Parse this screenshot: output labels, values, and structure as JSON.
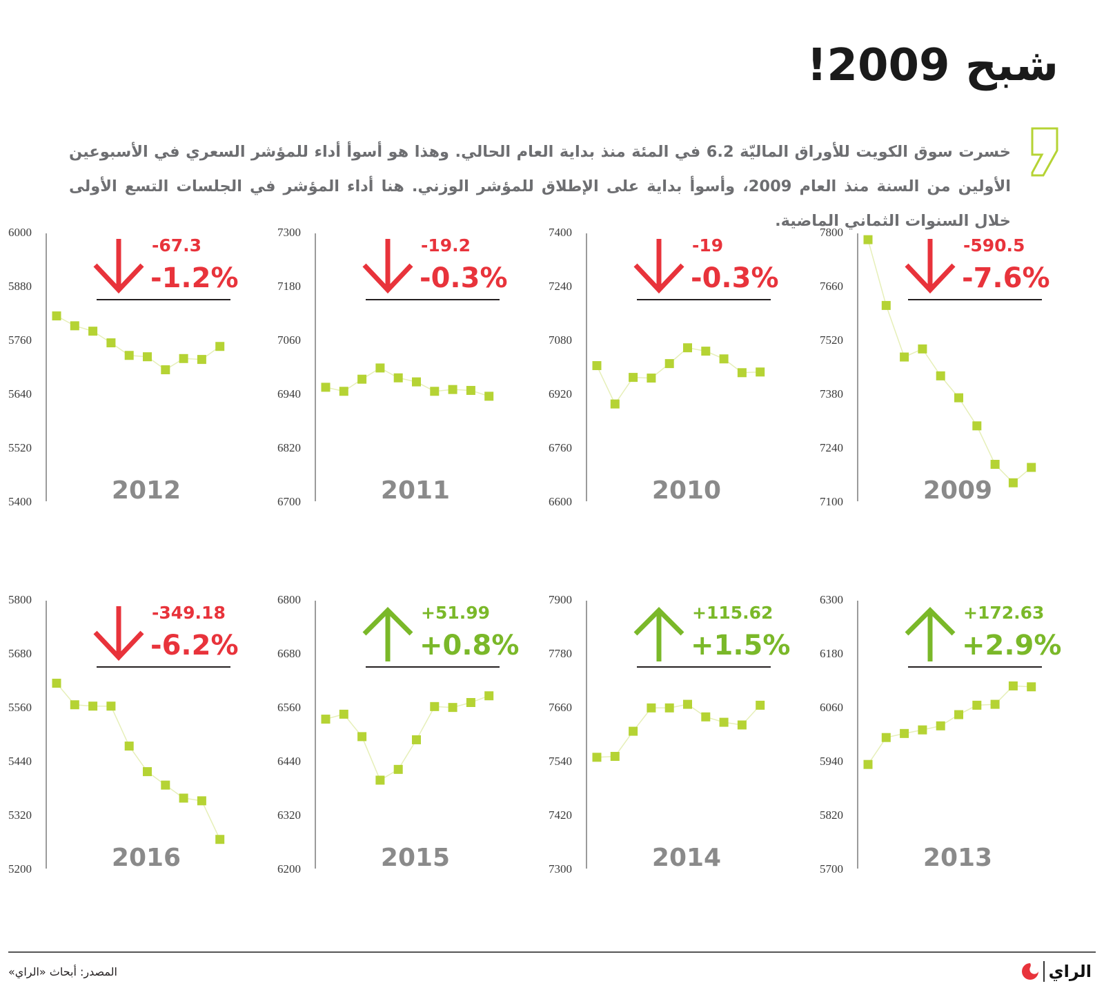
{
  "header": {
    "title": "شبح 2009!",
    "intro": "خسرت سوق الكويت للأوراق الماليّة 6.2 في المئة منذ بداية العام الحالي. وهذا هو أسوأ أداء للمؤشر السعري في الأسبوعين الأولين من السنة منذ العام 2009، وأسوأ بداية على الإطلاق للمؤشر الوزني. هنا أداء المؤشر في الجلسات التسع الأولى خلال السنوات الثماني الماضية."
  },
  "colors": {
    "up": "#7ab829",
    "down": "#e8333b",
    "marker": "#b5d334",
    "line": "#e6efb8",
    "axis": "#9b9b9b",
    "year": "#8a8a8a",
    "quote": "#b5d334"
  },
  "chart_data": [
    {
      "type": "line",
      "title": "2012",
      "direction": "down",
      "change_abs": "-67.3",
      "change_pct": "-1.2%",
      "ylim": [
        5400,
        6000
      ],
      "yticks": [
        "6000",
        "5880",
        "5760",
        "5640",
        "5520",
        "5400"
      ],
      "x": [
        1,
        2,
        3,
        4,
        5,
        6,
        7,
        8,
        9,
        10
      ],
      "values": [
        5813,
        5791,
        5779,
        5753,
        5725,
        5722,
        5693,
        5718,
        5716,
        5745
      ]
    },
    {
      "type": "line",
      "title": "2011",
      "direction": "down",
      "change_abs": "-19.2",
      "change_pct": "-0.3%",
      "ylim": [
        6700,
        7300
      ],
      "yticks": [
        "7300",
        "7180",
        "7060",
        "6940",
        "6820",
        "6700"
      ],
      "x": [
        1,
        2,
        3,
        4,
        5,
        6,
        7,
        8,
        9,
        10
      ],
      "values": [
        6954,
        6945,
        6972,
        6997,
        6975,
        6966,
        6945,
        6949,
        6947,
        6934
      ]
    },
    {
      "type": "line",
      "title": "2010",
      "direction": "down",
      "change_abs": "-19",
      "change_pct": "-0.3%",
      "ylim": [
        6600,
        7400
      ],
      "yticks": [
        "7400",
        "7240",
        "7080",
        "6920",
        "6760",
        "6600"
      ],
      "x": [
        1,
        2,
        3,
        4,
        5,
        6,
        7,
        8,
        9,
        10
      ],
      "values": [
        7003,
        6889,
        6968,
        6966,
        7009,
        7056,
        7046,
        7023,
        6982,
        6984
      ]
    },
    {
      "type": "line",
      "title": "2009",
      "direction": "down",
      "change_abs": "-590.5",
      "change_pct": "-7.6%",
      "ylim": [
        7100,
        7800
      ],
      "yticks": [
        "7800",
        "7660",
        "7520",
        "7380",
        "7240",
        "7100"
      ],
      "x": [
        1,
        2,
        3,
        4,
        5,
        6,
        7,
        8,
        9,
        10
      ],
      "values": [
        7780,
        7609,
        7475,
        7496,
        7426,
        7369,
        7296,
        7196,
        7148,
        7188
      ]
    },
    {
      "type": "line",
      "title": "2016",
      "direction": "down",
      "change_abs": "-349.18",
      "change_pct": "-6.2%",
      "ylim": [
        5200,
        5800
      ],
      "yticks": [
        "5800",
        "5680",
        "5560",
        "5440",
        "5320",
        "5200"
      ],
      "x": [
        1,
        2,
        3,
        4,
        5,
        6,
        7,
        8,
        9,
        10
      ],
      "values": [
        5613,
        5565,
        5562,
        5562,
        5473,
        5416,
        5386,
        5357,
        5351,
        5265
      ]
    },
    {
      "type": "line",
      "title": "2015",
      "direction": "up",
      "change_abs": "+51.99",
      "change_pct": "+0.8%",
      "ylim": [
        6200,
        6800
      ],
      "yticks": [
        "6800",
        "6680",
        "6560",
        "6440",
        "6320",
        "6200"
      ],
      "x": [
        1,
        2,
        3,
        4,
        5,
        6,
        7,
        8,
        9,
        10
      ],
      "values": [
        6533,
        6544,
        6494,
        6397,
        6421,
        6487,
        6561,
        6559,
        6570,
        6585
      ]
    },
    {
      "type": "line",
      "title": "2014",
      "direction": "up",
      "change_abs": "+115.62",
      "change_pct": "+1.5%",
      "ylim": [
        7300,
        7900
      ],
      "yticks": [
        "7900",
        "7780",
        "7660",
        "7540",
        "7420",
        "7300"
      ],
      "x": [
        1,
        2,
        3,
        4,
        5,
        6,
        7,
        8,
        9,
        10
      ],
      "values": [
        7548,
        7550,
        7606,
        7658,
        7658,
        7666,
        7638,
        7626,
        7620,
        7664
      ]
    },
    {
      "type": "line",
      "title": "2013",
      "direction": "up",
      "change_abs": "+172.63",
      "change_pct": "+2.9%",
      "ylim": [
        5700,
        6300
      ],
      "yticks": [
        "6300",
        "6180",
        "6060",
        "5940",
        "5820",
        "5700"
      ],
      "x": [
        1,
        2,
        3,
        4,
        5,
        6,
        7,
        8,
        9,
        10
      ],
      "values": [
        5932,
        5992,
        6001,
        6009,
        6018,
        6043,
        6064,
        6066,
        6107,
        6105
      ]
    }
  ],
  "footer": {
    "source": "المصدر: أبحاث «الراي»",
    "logo": "الراي"
  }
}
